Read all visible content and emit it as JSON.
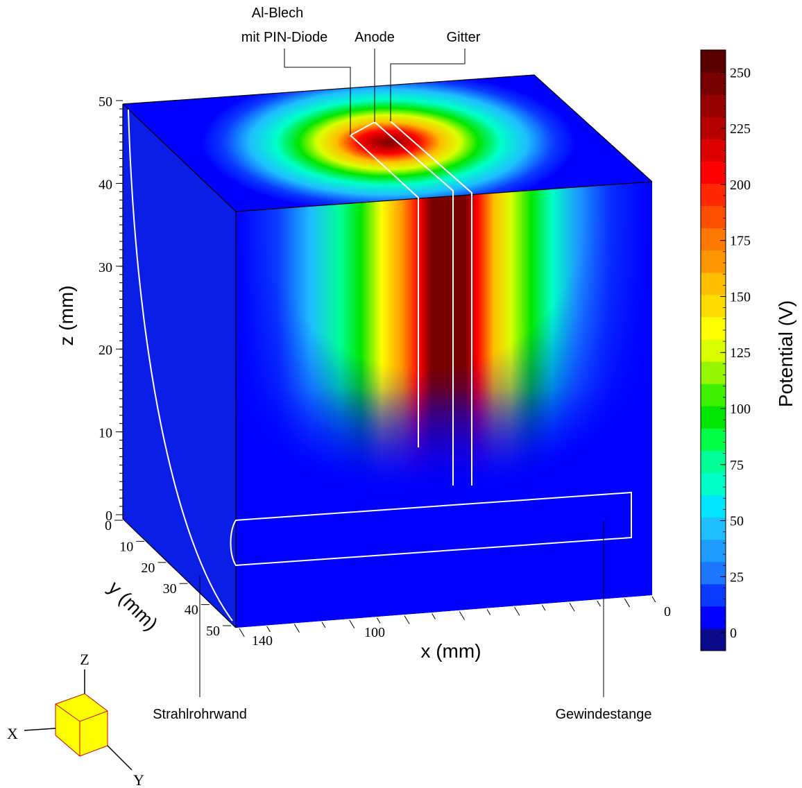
{
  "labels": {
    "al_blech_line1": "Al-Blech",
    "al_blech_line2": "mit PIN-Diode",
    "anode": "Anode",
    "gitter": "Gitter",
    "strahlrohrwand": "Strahlrohrwand",
    "gewindestange": "Gewindestange"
  },
  "axes": {
    "z": {
      "label": "z (mm)",
      "ticks": [
        "0",
        "10",
        "20",
        "30",
        "40",
        "50"
      ]
    },
    "y": {
      "label": "y (mm)",
      "ticks": [
        "0",
        "10",
        "20",
        "30",
        "40",
        "50"
      ]
    },
    "x": {
      "label": "x (mm)",
      "ticks": [
        "140",
        "100",
        "0"
      ]
    }
  },
  "colorbar": {
    "label": "Potential (V)",
    "ticks": [
      "0",
      "25",
      "50",
      "75",
      "100",
      "125",
      "150",
      "175",
      "200",
      "225",
      "250"
    ],
    "range": [
      -8,
      260
    ],
    "colors": [
      "#0a0a8c",
      "#0000ff",
      "#0a3cff",
      "#1e78ff",
      "#1e9bff",
      "#1ebeff",
      "#00e6ff",
      "#00ffc8",
      "#00ff96",
      "#00ff46",
      "#00e600",
      "#3cf000",
      "#96f500",
      "#dcff00",
      "#ffff00",
      "#ffdc00",
      "#ffbe00",
      "#ff9600",
      "#ff7800",
      "#ff5000",
      "#ff2800",
      "#ff0000",
      "#dc0000",
      "#b40000",
      "#960000",
      "#780000",
      "#5a0000"
    ]
  },
  "orientation": {
    "x": "X",
    "y": "Y",
    "z": "Z"
  }
}
